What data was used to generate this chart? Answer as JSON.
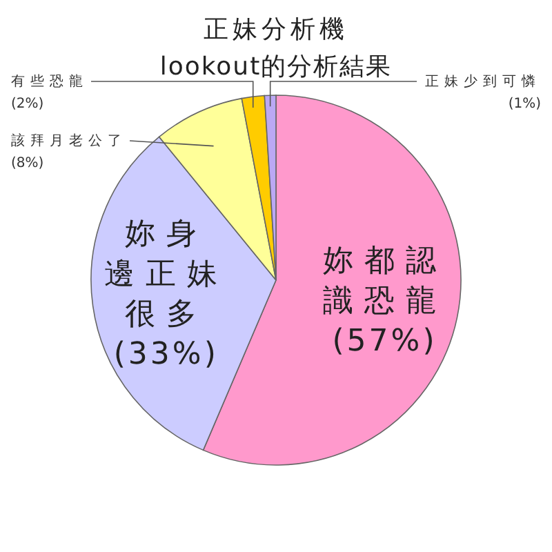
{
  "chart_data": {
    "type": "pie",
    "title": "正妹分析機",
    "subtitle": "lookout的分析結果",
    "categories": [
      "妳都認識恐龍",
      "妳身邊正妹很多",
      "該拜月老公了",
      "有些恐龍",
      "正妹少到可憐"
    ],
    "values": [
      57,
      33,
      8,
      2,
      1
    ],
    "colors": [
      "#ff99cc",
      "#ccccff",
      "#ffff99",
      "#ffcc00",
      "#bba8f4"
    ],
    "value_labels": [
      "(57%)",
      "(33%)",
      "(8%)",
      "(2%)",
      "(1%)"
    ]
  }
}
